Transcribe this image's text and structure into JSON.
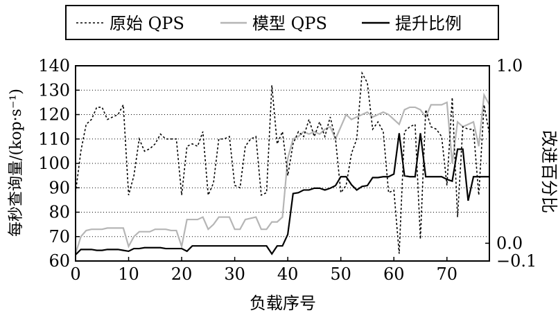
{
  "chart_data": {
    "type": "line",
    "legend": {
      "placement": "top-center",
      "frame": true
    },
    "ylabel_left": "每秒查询量/(kop·s⁻¹)",
    "ylabel_right": "改进百分比",
    "xlabel": "负载序号",
    "xlim": [
      0,
      78
    ],
    "ylim_left": [
      60,
      140
    ],
    "ylim_right": [
      -0.1,
      1.0
    ],
    "grid": "horizontal-dotted",
    "x_ticks": [
      "0",
      "10",
      "20",
      "30",
      "40",
      "50",
      "60",
      "70"
    ],
    "y_ticks_left": [
      "60",
      "70",
      "80",
      "90",
      "100",
      "110",
      "120",
      "130",
      "140"
    ],
    "y_ticks_right": [
      "−0.1",
      "0.0",
      "1.0"
    ],
    "series": [
      {
        "name": "原始 QPS",
        "style": "dotted",
        "color": "#000000",
        "axis": "left",
        "values": [
          88,
          105,
          116,
          118,
          123,
          123,
          118,
          119,
          120,
          124,
          87,
          95,
          110,
          105,
          106,
          108,
          112,
          110,
          110,
          110,
          87,
          107,
          108,
          107,
          113,
          87,
          92,
          110,
          110,
          111,
          91,
          90,
          107,
          110,
          111,
          87,
          88,
          132,
          108,
          113,
          95,
          108,
          113,
          111,
          118,
          111,
          117,
          111,
          119,
          110,
          88,
          91,
          104,
          110,
          137,
          133,
          114,
          117,
          113,
          88,
          89,
          63,
          113,
          115,
          116,
          69,
          122,
          115,
          114,
          111,
          91,
          127,
          78,
          115,
          114,
          114,
          87,
          124,
          112
        ],
        "y": [
          88,
          105,
          116,
          118,
          123,
          123,
          118,
          119,
          120,
          124,
          87,
          95,
          110,
          105,
          106,
          108,
          112,
          110,
          110,
          110,
          87,
          107,
          108,
          107,
          113,
          87,
          92,
          110,
          110,
          111,
          91,
          90,
          107,
          110,
          111,
          87,
          88,
          132,
          108,
          113,
          95,
          108,
          113,
          111,
          118,
          111,
          117,
          111,
          119,
          110,
          88,
          91,
          104,
          110,
          137,
          133,
          114,
          117,
          113,
          88,
          89,
          63,
          113,
          115,
          116,
          69,
          122,
          115,
          114,
          111,
          91,
          127,
          78,
          115,
          114,
          114,
          87,
          124,
          112
        ]
      },
      {
        "name": "模型 QPS",
        "style": "solid",
        "color": "#b5b5b5",
        "axis": "left",
        "values": [
          63,
          70,
          72.5,
          73,
          73,
          73,
          73.5,
          73.5,
          73.5,
          73.5,
          66,
          70,
          72,
          72,
          72,
          73,
          73,
          73,
          72.5,
          72.5,
          66,
          77,
          77,
          77,
          78,
          73,
          75,
          78,
          78,
          78,
          73,
          73,
          77,
          77.5,
          78,
          73,
          73,
          76,
          76,
          78,
          102,
          110,
          111,
          113,
          112,
          113,
          112,
          114,
          115,
          110,
          115,
          120,
          118,
          119,
          120,
          121,
          119,
          120,
          121,
          120,
          118,
          116,
          122,
          123,
          123,
          122,
          119,
          124,
          124,
          124,
          125,
          100,
          117,
          115,
          116,
          117,
          107,
          128,
          124
        ],
        "y": [
          63,
          70,
          72.5,
          73,
          73,
          73,
          73.5,
          73.5,
          73.5,
          73.5,
          66,
          70,
          72,
          72,
          72,
          73,
          73,
          73,
          72.5,
          72.5,
          66,
          77,
          77,
          77,
          78,
          73,
          75,
          78,
          78,
          78,
          73,
          73,
          77,
          77.5,
          78,
          73,
          73,
          76,
          76,
          78,
          102,
          110,
          111,
          113,
          112,
          113,
          112,
          114,
          115,
          110,
          115,
          120,
          118,
          119,
          120,
          121,
          119,
          120,
          121,
          120,
          118,
          116,
          122,
          123,
          123,
          122,
          119,
          124,
          124,
          124,
          125,
          100,
          117,
          115,
          116,
          117,
          107,
          128,
          124
        ]
      },
      {
        "name": "提升比例",
        "style": "solid",
        "color": "#000000",
        "axis": "right",
        "values": [
          -0.065,
          -0.035,
          -0.035,
          -0.035,
          -0.04,
          -0.04,
          -0.035,
          -0.035,
          -0.035,
          -0.04,
          -0.045,
          -0.03,
          -0.03,
          -0.025,
          -0.025,
          -0.025,
          -0.025,
          -0.03,
          -0.03,
          -0.03,
          -0.03,
          -0.045,
          -0.015,
          -0.015,
          -0.015,
          -0.015,
          -0.015,
          -0.015,
          -0.015,
          -0.015,
          -0.015,
          -0.015,
          -0.015,
          -0.015,
          -0.015,
          -0.015,
          -0.015,
          -0.06,
          -0.015,
          -0.015,
          0.05,
          0.28,
          0.285,
          0.3,
          0.3,
          0.31,
          0.31,
          0.3,
          0.31,
          0.325,
          0.375,
          0.375,
          0.33,
          0.3,
          0.32,
          0.325,
          0.37,
          0.37,
          0.375,
          0.375,
          0.39,
          0.62,
          0.38,
          0.375,
          0.375,
          0.62,
          0.375,
          0.375,
          0.375,
          0.375,
          0.36,
          0.35,
          0.53,
          0.53,
          0.24,
          0.375,
          0.375,
          0.375,
          0.375
        ],
        "y": [
          -0.065,
          -0.035,
          -0.035,
          -0.035,
          -0.04,
          -0.04,
          -0.035,
          -0.035,
          -0.035,
          -0.04,
          -0.045,
          -0.03,
          -0.03,
          -0.025,
          -0.025,
          -0.025,
          -0.025,
          -0.03,
          -0.03,
          -0.03,
          -0.03,
          -0.045,
          -0.015,
          -0.015,
          -0.015,
          -0.015,
          -0.015,
          -0.015,
          -0.015,
          -0.015,
          -0.015,
          -0.015,
          -0.015,
          -0.015,
          -0.015,
          -0.015,
          -0.015,
          -0.06,
          -0.015,
          -0.015,
          0.05,
          0.28,
          0.285,
          0.3,
          0.3,
          0.31,
          0.31,
          0.3,
          0.31,
          0.325,
          0.375,
          0.375,
          0.33,
          0.3,
          0.32,
          0.325,
          0.37,
          0.37,
          0.375,
          0.375,
          0.39,
          0.62,
          0.38,
          0.375,
          0.375,
          0.62,
          0.375,
          0.375,
          0.375,
          0.375,
          0.36,
          0.35,
          0.53,
          0.53,
          0.24,
          0.375,
          0.375,
          0.375,
          0.375
        ]
      }
    ]
  }
}
